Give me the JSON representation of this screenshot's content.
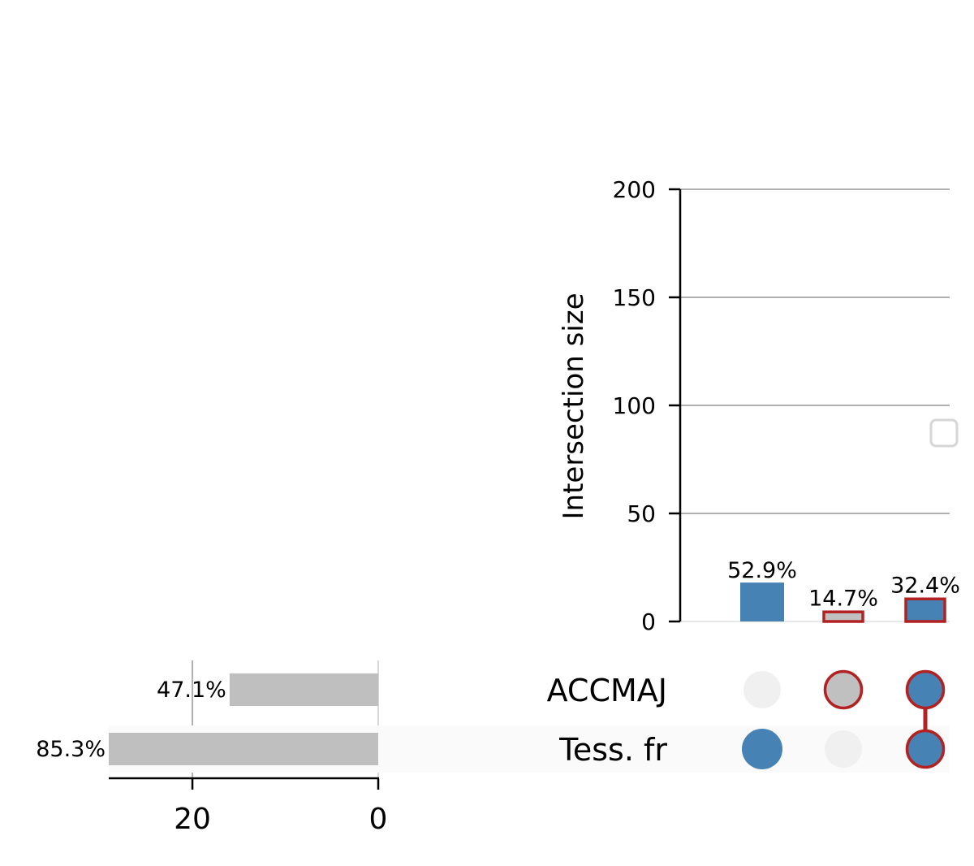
{
  "chart_data": {
    "type": "upset",
    "sets": [
      "ACCMAJ",
      "Tess. fr"
    ],
    "set_sizes": [
      {
        "name": "ACCMAJ",
        "size": 16,
        "label": "47.1%"
      },
      {
        "name": "Tess. fr",
        "size": 29,
        "label": "85.3%"
      }
    ],
    "set_size_axis": {
      "ticks": [
        20,
        0
      ],
      "tick_labels": [
        "20",
        "0"
      ],
      "range": [
        0,
        29
      ]
    },
    "intersections": [
      {
        "members": [
          false,
          true
        ],
        "size": 18,
        "label": "52.9%",
        "highlight": false
      },
      {
        "members": [
          true,
          false
        ],
        "size": 5,
        "label": "14.7%",
        "highlight": true
      },
      {
        "members": [
          true,
          true
        ],
        "size": 11,
        "label": "32.4%",
        "highlight": true
      }
    ],
    "intersection_axis": {
      "ylabel": "Intersection size",
      "ylim": [
        0,
        200
      ],
      "ticks": [
        0,
        50,
        100,
        150,
        200
      ],
      "tick_labels": [
        "0",
        "50",
        "100",
        "150",
        "200"
      ],
      "grid": true
    },
    "legend": {
      "placement": "right",
      "entries": []
    },
    "colors": {
      "bar": "#4682b4",
      "highlight_edge": "#b22222",
      "highlight_face": "#c0c0c0",
      "set_bar": "#bfbfbf",
      "inactive_dot": "#f0f0f0",
      "grid": "#b0b0b0",
      "row_shade": "#fafafa"
    }
  }
}
